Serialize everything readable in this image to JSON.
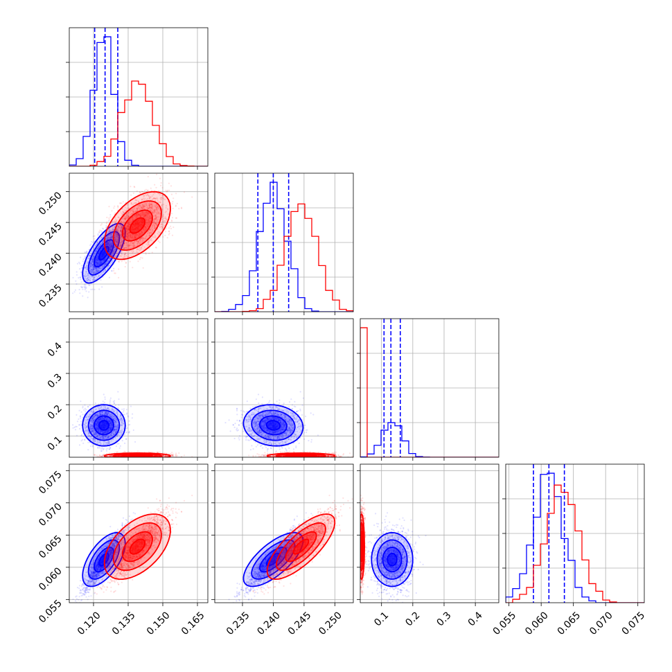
{
  "chart_data": {
    "type": "corner",
    "parameters": 4,
    "series": [
      {
        "name": "",
        "color": "#0000ff",
        "mean": [
          0.1245,
          0.24,
          0.134,
          0.0612
        ],
        "sd": [
          0.0042,
          0.0022,
          0.03,
          0.0019
        ],
        "corr": [
          [
            1,
            0.7,
            0,
            0.6
          ],
          [
            0.7,
            1,
            -0.1,
            0.7
          ],
          [
            0,
            -0.1,
            1,
            0
          ],
          [
            0.6,
            0.7,
            0,
            1
          ]
        ],
        "quantiles": [
          [
            0.1205,
            0.125,
            0.1305
          ],
          [
            0.2375,
            0.24,
            0.2425
          ],
          [
            0.108,
            0.13,
            0.16
          ],
          [
            0.0588,
            0.0612,
            0.0636
          ]
        ]
      },
      {
        "name": "",
        "color": "#ff0000",
        "mean": [
          0.139,
          0.2445,
          0.042,
          0.0632
        ],
        "sd": [
          0.0065,
          0.0025,
          0.006,
          0.0023
        ],
        "corr": [
          [
            1,
            0.5,
            0,
            0.5
          ],
          [
            0.5,
            1,
            0,
            0.75
          ],
          [
            0,
            0,
            1,
            0
          ],
          [
            0.5,
            0.75,
            0,
            1
          ]
        ]
      }
    ],
    "ranges": [
      [
        0.1095,
        0.1695
      ],
      [
        0.2305,
        0.253
      ],
      [
        0.032,
        0.475
      ],
      [
        0.0545,
        0.076
      ]
    ],
    "ticks": [
      {
        "values": [
          0.12,
          0.135,
          0.15,
          0.165
        ],
        "labels": [
          "0.120",
          "0.135",
          "0.150",
          "0.165"
        ]
      },
      {
        "values": [
          0.235,
          0.24,
          0.245,
          0.25
        ],
        "labels": [
          "0.235",
          "0.240",
          "0.245",
          "0.250"
        ]
      },
      {
        "values": [
          0.1,
          0.2,
          0.3,
          0.4
        ],
        "labels": [
          "0.1",
          "0.2",
          "0.3",
          "0.4"
        ]
      },
      {
        "values": [
          0.055,
          0.06,
          0.065,
          0.07,
          0.075
        ],
        "labels": [
          "0.055",
          "0.060",
          "0.065",
          "0.070",
          "0.075"
        ]
      }
    ],
    "grid": true,
    "legend": "none",
    "title": "",
    "xlabel": "",
    "ylabel": ""
  }
}
